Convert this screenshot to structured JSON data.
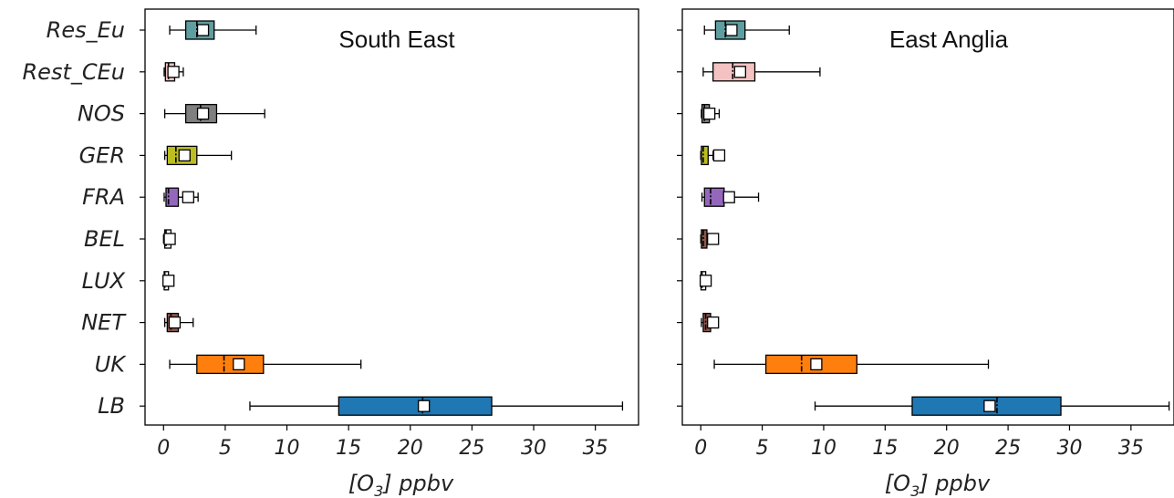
{
  "chart_data": [
    {
      "type": "box",
      "title": "South East",
      "xlabel": "[O3] ppbv",
      "xlabel_parts": [
        "[O",
        "3",
        "] ppbv"
      ],
      "xlim": [
        -1.5,
        38.5
      ],
      "xticks": [
        0,
        5,
        10,
        15,
        20,
        25,
        30,
        35
      ],
      "show_category_labels": true,
      "categories": [
        "Res_Eu",
        "Rest_CEu",
        "NOS",
        "GER",
        "FRA",
        "BEL",
        "LUX",
        "NET",
        "UK",
        "LB"
      ],
      "boxes": [
        {
          "category": "Res_Eu",
          "color": "#5f9ea0",
          "whisker_low": 0.5,
          "q1": 1.8,
          "median": 2.7,
          "q3": 4.1,
          "whisker_high": 7.5,
          "mean": 3.2
        },
        {
          "category": "Rest_CEu",
          "color": "#f4c2c2",
          "whisker_low": 0.05,
          "q1": 0.15,
          "median": 0.4,
          "q3": 0.9,
          "whisker_high": 1.6,
          "mean": 0.8
        },
        {
          "category": "NOS",
          "color": "#7f7f7f",
          "whisker_low": 0.1,
          "q1": 1.8,
          "median": 3.0,
          "q3": 4.3,
          "whisker_high": 8.2,
          "mean": 3.2
        },
        {
          "category": "GER",
          "color": "#bcbd22",
          "whisker_low": 0.1,
          "q1": 0.3,
          "median": 1.0,
          "q3": 2.7,
          "whisker_high": 5.5,
          "mean": 1.7
        },
        {
          "category": "FRA",
          "color": "#9467bd",
          "whisker_low": 0.05,
          "q1": 0.2,
          "median": 0.4,
          "q3": 1.2,
          "whisker_high": 2.8,
          "mean": 2.0
        },
        {
          "category": "BEL",
          "color": "#ffffff",
          "whisker_low": 0.0,
          "q1": 0.1,
          "median": 0.2,
          "q3": 0.6,
          "whisker_high": 0.9,
          "mean": 0.5
        },
        {
          "category": "LUX",
          "color": "#ffffff",
          "whisker_low": 0.0,
          "q1": 0.05,
          "median": 0.1,
          "q3": 0.4,
          "whisker_high": 0.7,
          "mean": 0.4
        },
        {
          "category": "NET",
          "color": "#8c564b",
          "whisker_low": 0.1,
          "q1": 0.3,
          "median": 0.6,
          "q3": 1.2,
          "whisker_high": 2.4,
          "mean": 0.9
        },
        {
          "category": "UK",
          "color": "#ff7f0e",
          "whisker_low": 0.5,
          "q1": 2.7,
          "median": 4.9,
          "q3": 8.1,
          "whisker_high": 16.0,
          "mean": 6.1
        },
        {
          "category": "LB",
          "color": "#1f77b4",
          "whisker_low": 7.0,
          "q1": 14.2,
          "median": 21.0,
          "q3": 26.6,
          "whisker_high": 37.2,
          "mean": 21.1
        }
      ]
    },
    {
      "type": "box",
      "title": "East Anglia",
      "xlabel": "[O3] ppbv",
      "xlabel_parts": [
        "[O",
        "3",
        "] ppbv"
      ],
      "xlim": [
        -1.5,
        38.5
      ],
      "xticks": [
        0,
        5,
        10,
        15,
        20,
        25,
        30,
        35
      ],
      "show_category_labels": false,
      "categories": [
        "Res_Eu",
        "Rest_CEu",
        "NOS",
        "GER",
        "FRA",
        "BEL",
        "LUX",
        "NET",
        "UK",
        "LB"
      ],
      "boxes": [
        {
          "category": "Res_Eu",
          "color": "#5f9ea0",
          "whisker_low": 0.3,
          "q1": 1.2,
          "median": 2.0,
          "q3": 3.6,
          "whisker_high": 7.2,
          "mean": 2.5
        },
        {
          "category": "Rest_CEu",
          "color": "#f4c2c2",
          "whisker_low": 0.2,
          "q1": 1.0,
          "median": 2.6,
          "q3": 4.4,
          "whisker_high": 9.7,
          "mean": 3.2
        },
        {
          "category": "NOS",
          "color": "#7f7f7f",
          "whisker_low": 0.05,
          "q1": 0.1,
          "median": 0.3,
          "q3": 0.7,
          "whisker_high": 1.5,
          "mean": 0.7
        },
        {
          "category": "GER",
          "color": "#bcbd22",
          "whisker_low": 0.0,
          "q1": 0.05,
          "median": 0.2,
          "q3": 0.6,
          "whisker_high": 1.0,
          "mean": 1.5
        },
        {
          "category": "FRA",
          "color": "#9467bd",
          "whisker_low": 0.1,
          "q1": 0.3,
          "median": 0.8,
          "q3": 1.9,
          "whisker_high": 4.7,
          "mean": 2.3
        },
        {
          "category": "BEL",
          "color": "#8c564b",
          "whisker_low": 0.0,
          "q1": 0.05,
          "median": 0.2,
          "q3": 0.5,
          "whisker_high": 0.8,
          "mean": 1.0
        },
        {
          "category": "LUX",
          "color": "#ffffff",
          "whisker_low": 0.0,
          "q1": 0.02,
          "median": 0.1,
          "q3": 0.4,
          "whisker_high": 0.7,
          "mean": 0.4
        },
        {
          "category": "NET",
          "color": "#8c564b",
          "whisker_low": 0.05,
          "q1": 0.2,
          "median": 0.4,
          "q3": 0.8,
          "whisker_high": 1.4,
          "mean": 1.0
        },
        {
          "category": "UK",
          "color": "#ff7f0e",
          "whisker_low": 1.1,
          "q1": 5.3,
          "median": 8.2,
          "q3": 12.7,
          "whisker_high": 23.4,
          "mean": 9.4
        },
        {
          "category": "LB",
          "color": "#1f77b4",
          "whisker_low": 9.3,
          "q1": 17.2,
          "median": 24.1,
          "q3": 29.3,
          "whisker_high": 38.1,
          "mean": 23.5
        }
      ]
    }
  ]
}
